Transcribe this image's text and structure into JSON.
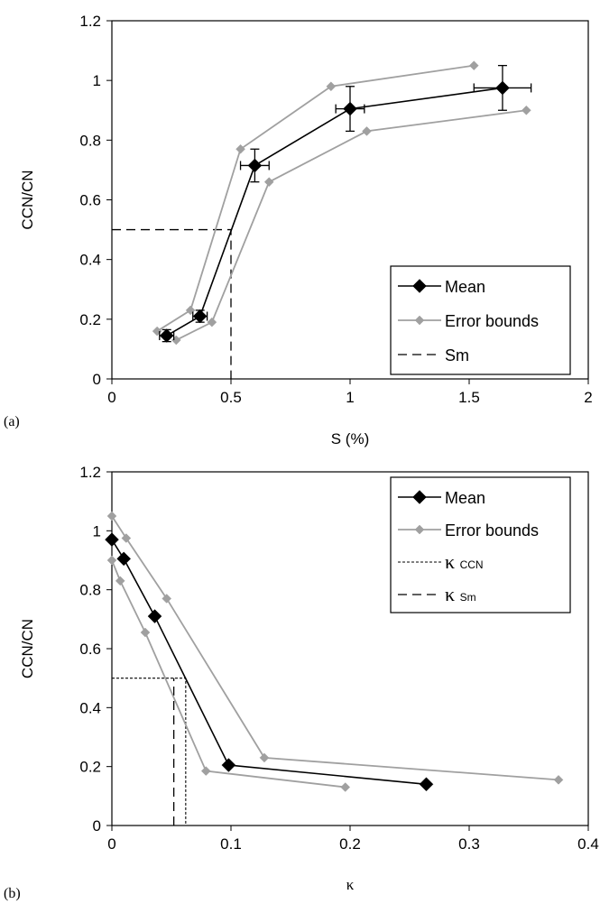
{
  "chart_data": [
    {
      "type": "scatter",
      "panel_label": "(a)",
      "title": "",
      "xlabel": "S (%)",
      "ylabel": "CCN/CN",
      "xlim": [
        0,
        2
      ],
      "ylim": [
        0,
        1.2
      ],
      "xticks": [
        0,
        0.5,
        1,
        1.5,
        2
      ],
      "xtick_labels": [
        "0",
        "0.5",
        "1",
        "1.5",
        "2"
      ],
      "yticks": [
        0,
        0.2,
        0.4,
        0.6,
        0.8,
        1,
        1.2
      ],
      "ytick_labels": [
        "0",
        "0.2",
        "0.4",
        "0.6",
        "0.8",
        "1",
        "1.2"
      ],
      "grid": false,
      "legend_position": "bottom-right",
      "series": [
        {
          "name": "Mean",
          "style": "line-diamond-black",
          "x": [
            0.23,
            0.37,
            0.6,
            1.0,
            1.64
          ],
          "y": [
            0.145,
            0.21,
            0.715,
            0.905,
            0.975
          ],
          "x_err": [
            0.03,
            0.03,
            0.06,
            0.06,
            0.12
          ],
          "y_err": [
            0.02,
            0.02,
            0.055,
            0.075,
            0.075
          ]
        },
        {
          "name": "Error bounds",
          "style": "line-diamond-gray",
          "x": [
            0.19,
            0.33,
            0.54,
            0.92,
            1.52
          ],
          "y": [
            0.16,
            0.23,
            0.77,
            0.98,
            1.05
          ]
        },
        {
          "name": "",
          "legend": false,
          "style": "line-diamond-gray",
          "x": [
            0.27,
            0.42,
            0.66,
            1.07,
            1.74
          ],
          "y": [
            0.13,
            0.19,
            0.66,
            0.83,
            0.9
          ]
        },
        {
          "name": "Sm",
          "style": "dashed-long",
          "x": [
            0,
            0.5,
            0.5
          ],
          "y": [
            0.5,
            0.5,
            0
          ]
        }
      ]
    },
    {
      "type": "scatter",
      "panel_label": "(b)",
      "title": "",
      "xlabel": "κ",
      "ylabel": "CCN/CN",
      "xlim": [
        0,
        0.4
      ],
      "ylim": [
        0,
        1.2
      ],
      "xticks": [
        0,
        0.1,
        0.2,
        0.3,
        0.4
      ],
      "xtick_labels": [
        "0",
        "0.1",
        "0.2",
        "0.3",
        "0.4"
      ],
      "yticks": [
        0,
        0.2,
        0.4,
        0.6,
        0.8,
        1,
        1.2
      ],
      "ytick_labels": [
        "0",
        "0.2",
        "0.4",
        "0.6",
        "0.8",
        "1",
        "1.2"
      ],
      "grid": false,
      "legend_position": "top-right",
      "series": [
        {
          "name": "Mean",
          "style": "line-diamond-black",
          "x": [
            0.0,
            0.01,
            0.036,
            0.098,
            0.264
          ],
          "y": [
            0.97,
            0.905,
            0.71,
            0.205,
            0.14
          ]
        },
        {
          "name": "Error bounds",
          "style": "line-diamond-gray",
          "x": [
            0.0,
            0.012,
            0.046,
            0.128,
            0.375
          ],
          "y": [
            1.05,
            0.975,
            0.77,
            0.23,
            0.155
          ]
        },
        {
          "name": "",
          "legend": false,
          "style": "line-diamond-gray",
          "x": [
            0.0,
            0.007,
            0.028,
            0.079,
            0.196
          ],
          "y": [
            0.9,
            0.83,
            0.655,
            0.185,
            0.13
          ]
        },
        {
          "name": "κ",
          "name_sub": "CCN",
          "style": "dotted-short",
          "x": [
            0,
            0.062,
            0.062
          ],
          "y": [
            0.5,
            0.5,
            0
          ]
        },
        {
          "name": "κ",
          "name_sub": "Sm",
          "style": "dashed-long",
          "x": [
            0.052,
            0.052
          ],
          "y": [
            0,
            0.5
          ]
        }
      ]
    }
  ]
}
